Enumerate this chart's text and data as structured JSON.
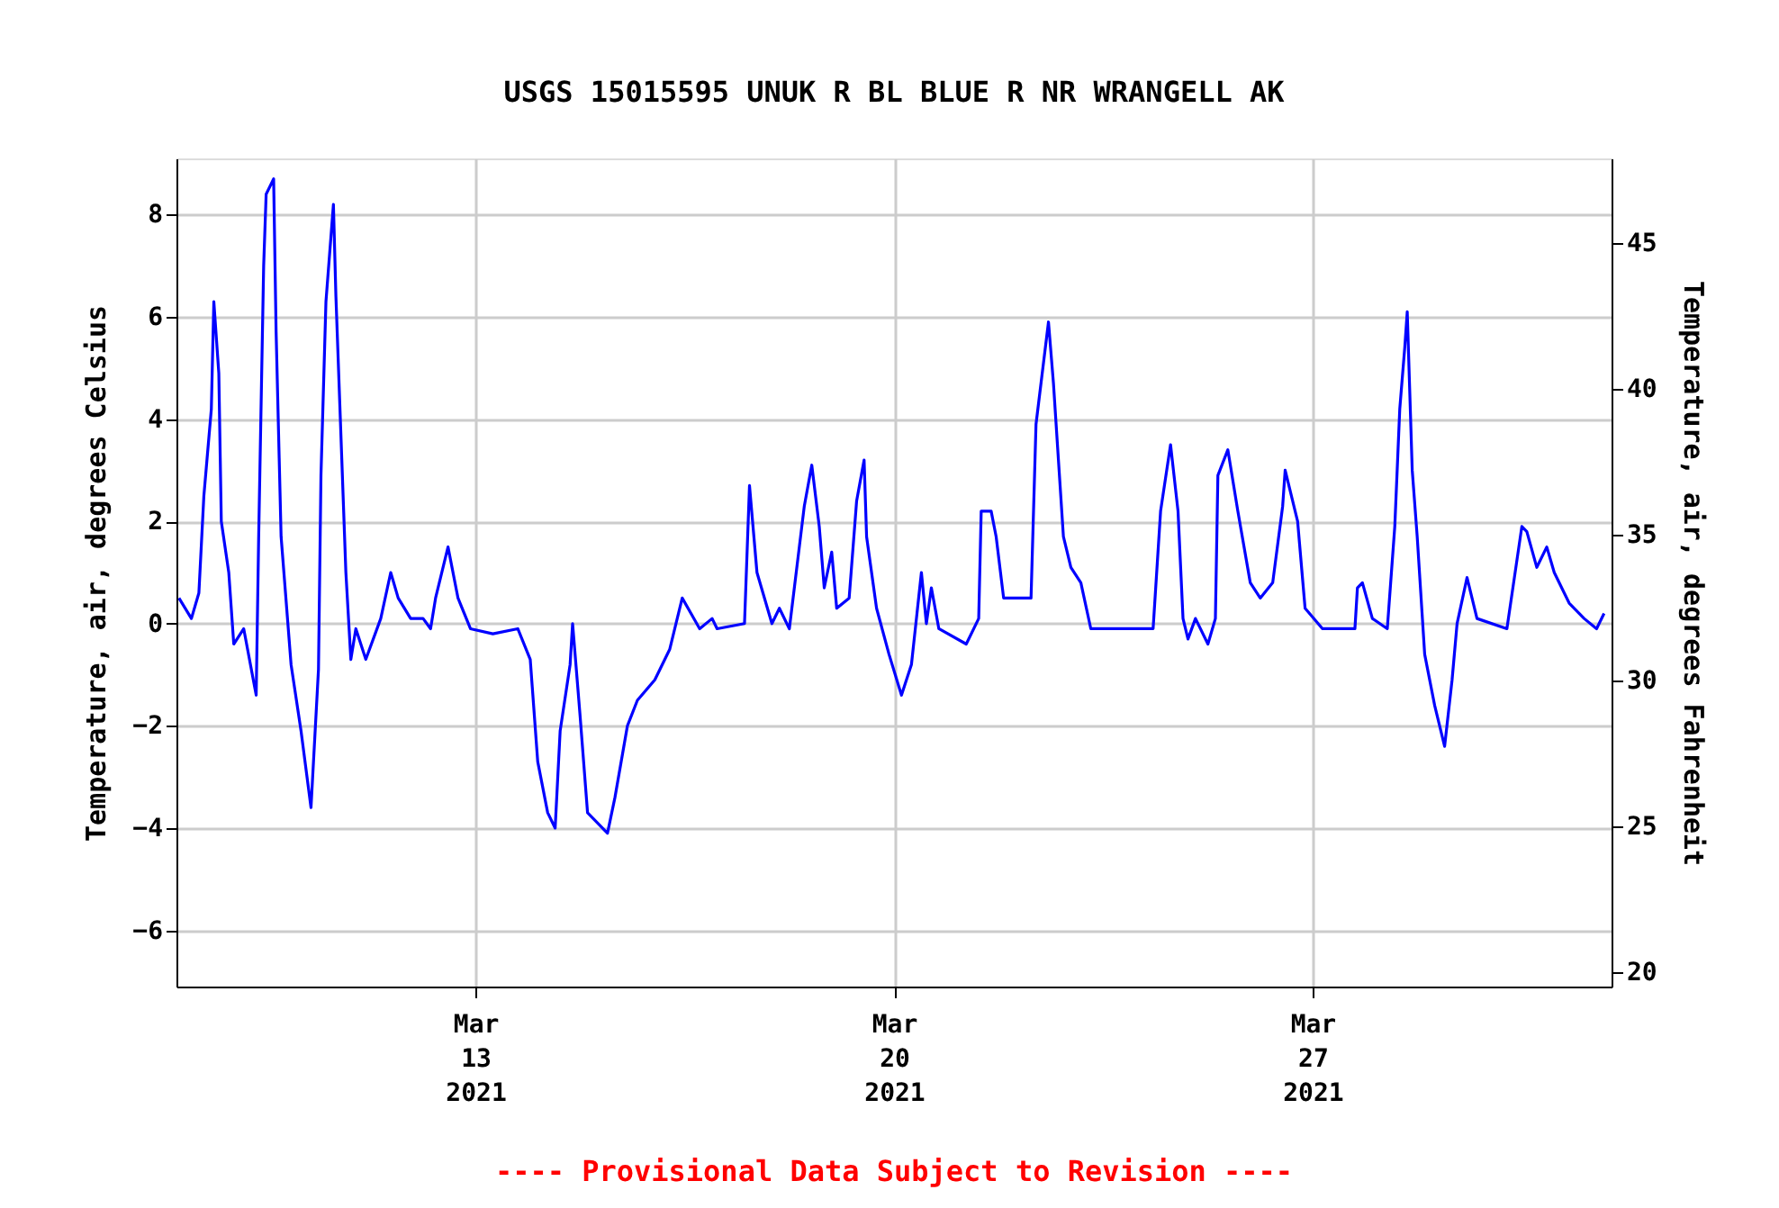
{
  "chart_data": {
    "type": "line",
    "title": "USGS 15015595 UNUK R BL BLUE R NR WRANGELL AK",
    "ylabel": "Temperature, air, degrees Celsius",
    "y2label": "Temperature, air, degrees Fahrenheit",
    "x": [
      "2021-03-08T01:00",
      "2021-03-08T06:00",
      "2021-03-08T09:00",
      "2021-03-08T11:00",
      "2021-03-08T14:00",
      "2021-03-08T15:00",
      "2021-03-08T17:00",
      "2021-03-08T18:00",
      "2021-03-08T21:00",
      "2021-03-08T23:00",
      "2021-03-09T03:00",
      "2021-03-09T08:00",
      "2021-03-09T09:00",
      "2021-03-09T11:00",
      "2021-03-09T12:00",
      "2021-03-09T15:00",
      "2021-03-09T16:00",
      "2021-03-09T18:00",
      "2021-03-09T22:00",
      "2021-03-10T02:00",
      "2021-03-10T06:00",
      "2021-03-10T09:00",
      "2021-03-10T10:00",
      "2021-03-10T12:00",
      "2021-03-10T15:00",
      "2021-03-10T16:00",
      "2021-03-10T20:00",
      "2021-03-10T22:00",
      "2021-03-11T00:00",
      "2021-03-11T04:00",
      "2021-03-11T10:00",
      "2021-03-11T14:00",
      "2021-03-11T17:00",
      "2021-03-11T22:00",
      "2021-03-12T03:00",
      "2021-03-12T06:00",
      "2021-03-12T08:00",
      "2021-03-12T13:00",
      "2021-03-12T17:00",
      "2021-03-12T22:00",
      "2021-03-13T07:00",
      "2021-03-13T17:00",
      "2021-03-13T22:00",
      "2021-03-14T01:00",
      "2021-03-14T05:00",
      "2021-03-14T08:00",
      "2021-03-14T10:00",
      "2021-03-14T14:00",
      "2021-03-14T15:00",
      "2021-03-14T18:00",
      "2021-03-14T21:00",
      "2021-03-15T05:00",
      "2021-03-15T08:00",
      "2021-03-15T13:00",
      "2021-03-15T17:00",
      "2021-03-16T00:00",
      "2021-03-16T06:00",
      "2021-03-16T11:00",
      "2021-03-16T18:00",
      "2021-03-16T23:00",
      "2021-03-17T01:00",
      "2021-03-17T12:00",
      "2021-03-17T14:00",
      "2021-03-17T17:00",
      "2021-03-17T23:00",
      "2021-03-18T02:00",
      "2021-03-18T06:00",
      "2021-03-18T12:00",
      "2021-03-18T15:00",
      "2021-03-18T18:00",
      "2021-03-18T20:00",
      "2021-03-18T23:00",
      "2021-03-19T01:00",
      "2021-03-19T06:00",
      "2021-03-19T09:00",
      "2021-03-19T12:00",
      "2021-03-19T13:00",
      "2021-03-19T17:00",
      "2021-03-19T22:00",
      "2021-03-20T03:00",
      "2021-03-20T07:00",
      "2021-03-20T11:00",
      "2021-03-20T13:00",
      "2021-03-20T15:00",
      "2021-03-20T18:00",
      "2021-03-21T05:00",
      "2021-03-21T10:00",
      "2021-03-21T11:00",
      "2021-03-21T15:00",
      "2021-03-21T17:00",
      "2021-03-21T20:00",
      "2021-03-22T07:00",
      "2021-03-22T09:00",
      "2021-03-22T14:00",
      "2021-03-22T16:00",
      "2021-03-22T18:00",
      "2021-03-22T20:00",
      "2021-03-22T23:00",
      "2021-03-23T03:00",
      "2021-03-23T07:00",
      "2021-03-23T23:00",
      "2021-03-24T08:00",
      "2021-03-24T11:00",
      "2021-03-24T15:00",
      "2021-03-24T18:00",
      "2021-03-24T20:00",
      "2021-03-24T22:00",
      "2021-03-25T01:00",
      "2021-03-25T06:00",
      "2021-03-25T09:00",
      "2021-03-25T10:00",
      "2021-03-25T14:00",
      "2021-03-25T18:00",
      "2021-03-25T23:00",
      "2021-03-26T03:00",
      "2021-03-26T08:00",
      "2021-03-26T12:00",
      "2021-03-26T13:00",
      "2021-03-26T18:00",
      "2021-03-26T21:00",
      "2021-03-27T04:00",
      "2021-03-27T17:00",
      "2021-03-27T18:00",
      "2021-03-27T20:00",
      "2021-03-28T00:00",
      "2021-03-28T06:00",
      "2021-03-28T09:00",
      "2021-03-28T11:00",
      "2021-03-28T13:00",
      "2021-03-28T14:00",
      "2021-03-28T16:00",
      "2021-03-28T18:00",
      "2021-03-28T21:00",
      "2021-03-29T01:00",
      "2021-03-29T05:00",
      "2021-03-29T08:00",
      "2021-03-29T10:00",
      "2021-03-29T14:00",
      "2021-03-29T18:00",
      "2021-03-30T06:00",
      "2021-03-30T12:00",
      "2021-03-30T14:00",
      "2021-03-30T18:00",
      "2021-03-30T22:00",
      "2021-03-31T01:00",
      "2021-03-31T07:00",
      "2021-03-31T13:00",
      "2021-03-31T18:00",
      "2021-03-31T21:00"
    ],
    "series": [
      {
        "color": "#0000ff",
        "values": [
          0.5,
          0.1,
          0.6,
          2.5,
          4.2,
          6.3,
          4.9,
          2.0,
          1.0,
          -0.4,
          -0.1,
          -1.4,
          1.7,
          7.0,
          8.4,
          8.7,
          5.7,
          1.7,
          -0.8,
          -2.1,
          -3.6,
          -0.9,
          2.9,
          6.3,
          8.2,
          6.4,
          1.0,
          -0.7,
          -0.1,
          -0.7,
          0.1,
          1.0,
          0.5,
          0.1,
          0.1,
          -0.1,
          0.5,
          1.5,
          0.5,
          -0.1,
          -0.2,
          -0.1,
          -0.7,
          -2.7,
          -3.7,
          -4.0,
          -2.1,
          -0.8,
          0.0,
          -1.8,
          -3.7,
          -4.1,
          -3.4,
          -2.0,
          -1.5,
          -1.1,
          -0.5,
          0.5,
          -0.1,
          0.1,
          -0.1,
          0.0,
          2.7,
          1.0,
          0.0,
          0.3,
          -0.1,
          2.3,
          3.1,
          1.9,
          0.7,
          1.4,
          0.3,
          0.5,
          2.4,
          3.2,
          1.7,
          0.3,
          -0.6,
          -1.4,
          -0.8,
          1.0,
          0.0,
          0.7,
          -0.1,
          -0.4,
          0.1,
          2.2,
          2.2,
          1.7,
          0.5,
          0.5,
          3.9,
          5.9,
          4.7,
          3.2,
          1.7,
          1.1,
          0.8,
          -0.1,
          -0.1,
          -0.1,
          2.2,
          3.5,
          2.2,
          0.1,
          -0.3,
          0.1,
          -0.4,
          0.1,
          2.9,
          3.4,
          2.2,
          0.8,
          0.5,
          0.8,
          2.3,
          3.0,
          2.0,
          0.3,
          -0.1,
          -0.1,
          0.7,
          0.8,
          0.1,
          -0.1,
          1.9,
          4.2,
          5.4,
          6.1,
          3.0,
          1.7,
          -0.6,
          -1.6,
          -2.4,
          -1.1,
          0.0,
          0.9,
          0.1,
          -0.1,
          1.9,
          1.8,
          1.1,
          1.5,
          1.0,
          0.4,
          0.1,
          -0.1,
          0.2
        ]
      }
    ],
    "xlim": [
      "2021-03-08T00:00",
      "2021-04-01T00:00"
    ],
    "xticks": [
      {
        "value": "2021-03-13",
        "label": "Mar\n13\n2021"
      },
      {
        "value": "2021-03-20",
        "label": "Mar\n20\n2021"
      },
      {
        "value": "2021-03-27",
        "label": "Mar\n27\n2021"
      }
    ],
    "ylim": [
      -7.1,
      9.1
    ],
    "yticks": [
      -6,
      -4,
      -2,
      0,
      2,
      4,
      6,
      8
    ],
    "y2lim": [
      19.5,
      47.9
    ],
    "y2ticks": [
      20,
      25,
      30,
      35,
      40,
      45
    ],
    "grid": true,
    "annotations": [
      "---- Provisional Data Subject to Revision ----"
    ]
  }
}
